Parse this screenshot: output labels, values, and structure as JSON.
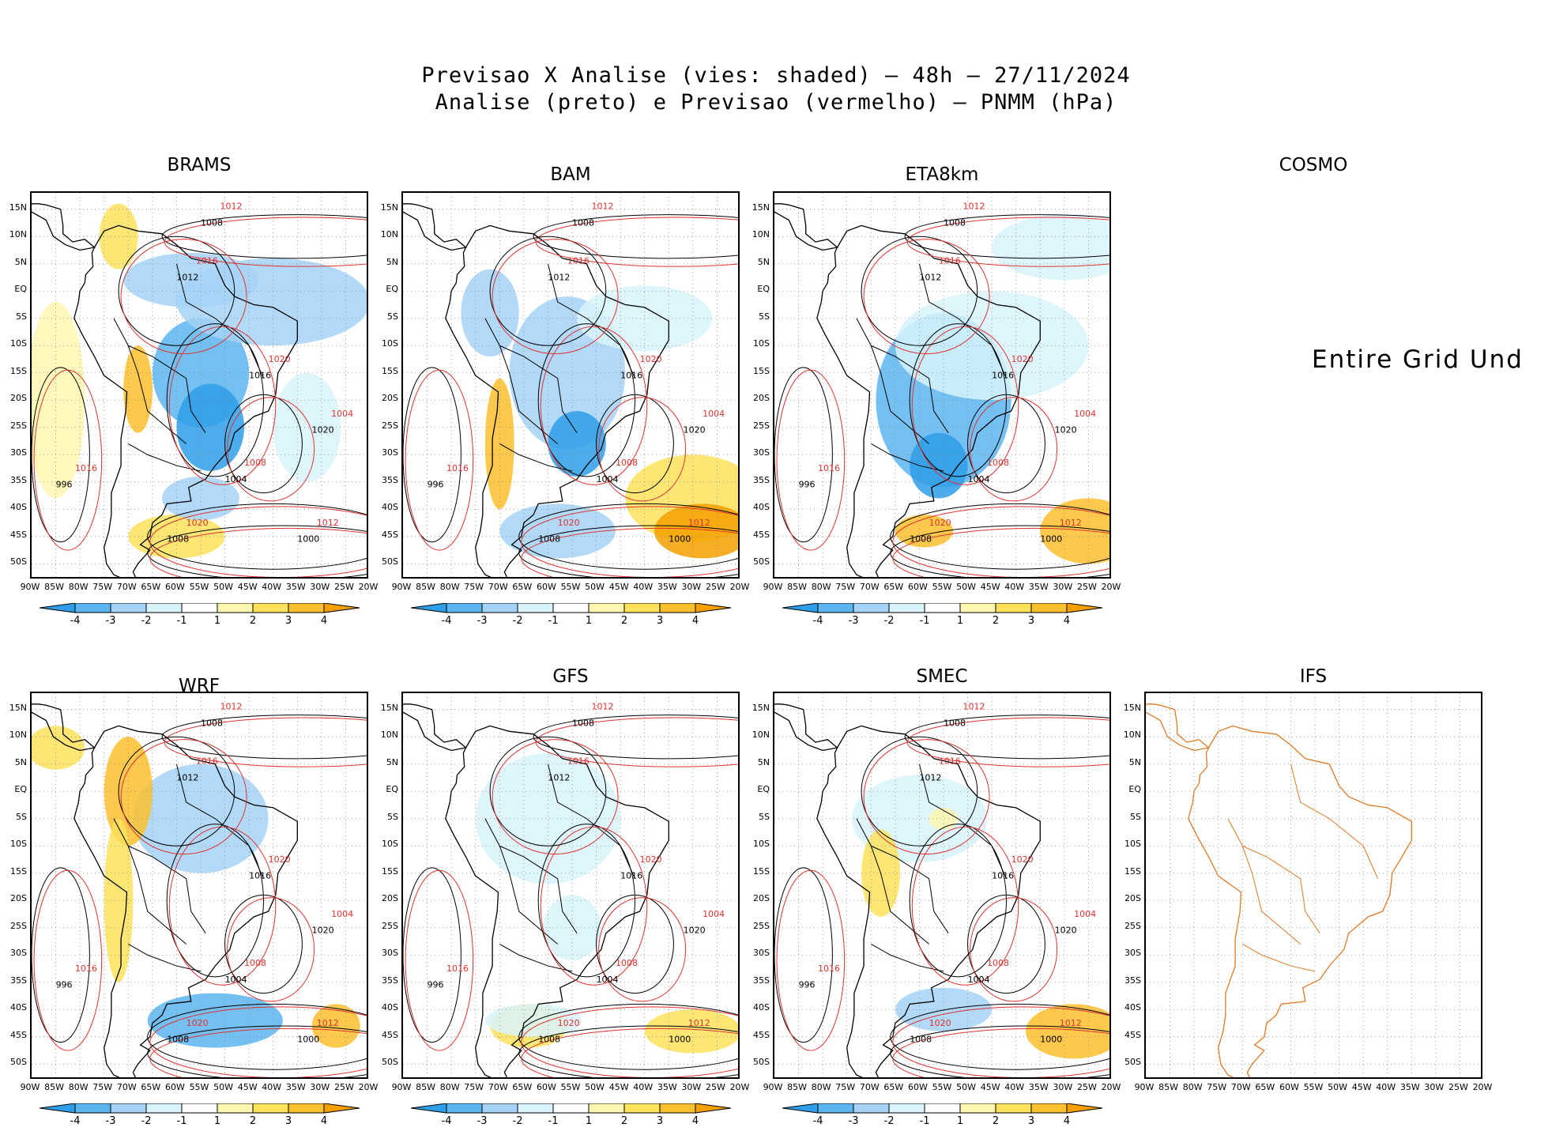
{
  "title": {
    "line1": "Previsao X Analise (vies: shaded) – 48h – 27/11/2024",
    "line2": "Analise (preto) e Previsao (vermelho) – PNMM (hPa)"
  },
  "panels": [
    {
      "name": "BRAMS",
      "has_data": true,
      "has_colorbar": true
    },
    {
      "name": "BAM",
      "has_data": true,
      "has_colorbar": true
    },
    {
      "name": "ETA8km",
      "has_data": true,
      "has_colorbar": true
    },
    {
      "name": "COSMO",
      "has_data": false,
      "has_colorbar": false,
      "undefined_text": "Entire Grid Und"
    },
    {
      "name": "WRF",
      "has_data": true,
      "has_colorbar": true
    },
    {
      "name": "GFS",
      "has_data": true,
      "has_colorbar": true
    },
    {
      "name": "SMEC",
      "has_data": true,
      "has_colorbar": true
    },
    {
      "name": "IFS",
      "has_data": false,
      "has_colorbar": false,
      "outline_only": true
    }
  ],
  "axes": {
    "lat_labels": [
      "15N",
      "10N",
      "5N",
      "EQ",
      "5S",
      "10S",
      "15S",
      "20S",
      "25S",
      "30S",
      "35S",
      "40S",
      "45S",
      "50S"
    ],
    "lon_labels": [
      "90W",
      "85W",
      "80W",
      "75W",
      "70W",
      "65W",
      "60W",
      "55W",
      "50W",
      "45W",
      "40W",
      "35W",
      "30W",
      "25W",
      "20W"
    ]
  },
  "colorbar": {
    "labels": [
      "-4",
      "-3",
      "-2",
      "-1",
      "1",
      "2",
      "3",
      "4"
    ],
    "colors": [
      "#2e9ee8",
      "#5db5f0",
      "#a6d2f7",
      "#d8f3fb",
      "#ffffff",
      "#fff7b0",
      "#fde25a",
      "#fbc02d",
      "#f5a000"
    ]
  },
  "contour_labels": {
    "analysis": [
      "1008",
      "1012",
      "1016",
      "1020",
      "1004",
      "1000",
      "996"
    ],
    "forecast": [
      "1008",
      "1012",
      "1016",
      "1020",
      "1004"
    ]
  },
  "colors": {
    "analysis_contour": "#000000",
    "forecast_contour": "#e0322e",
    "ifs_outline": "#e07a25"
  }
}
